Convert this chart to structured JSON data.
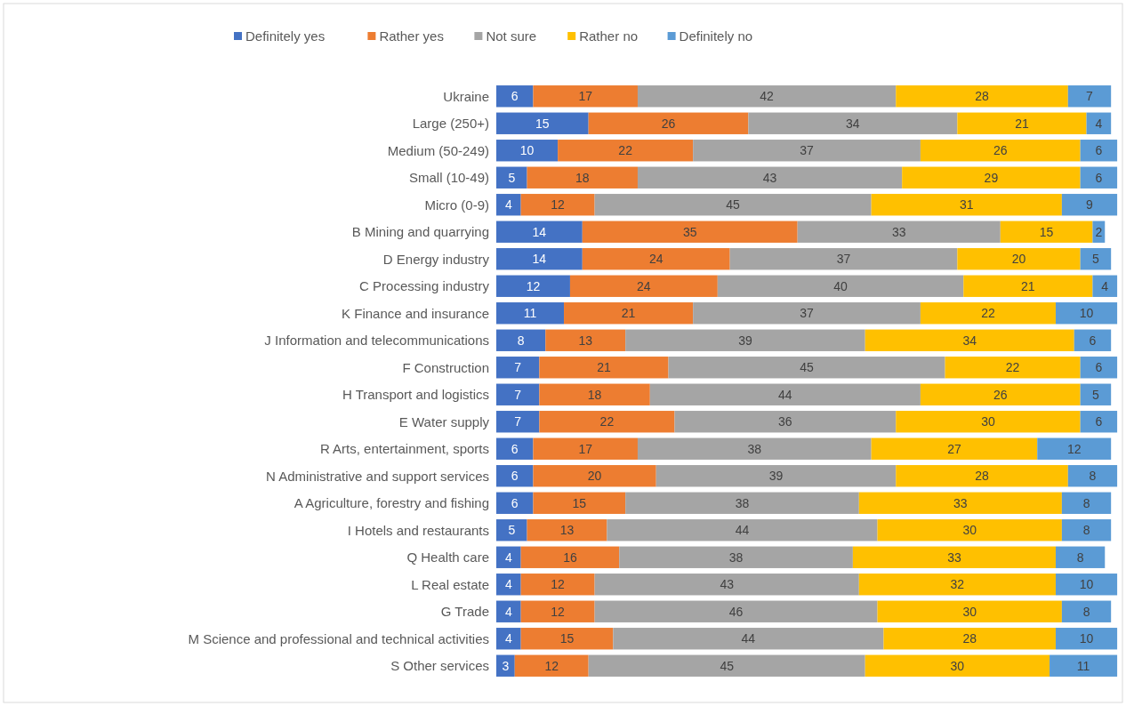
{
  "chart_data": {
    "type": "bar",
    "orientation": "horizontal",
    "stacked": true,
    "data_labels": true,
    "legend": "top",
    "tick_labels": "y",
    "xlim": [
      0,
      102
    ],
    "categories": [
      "Ukraine",
      "Large (250+)",
      "Medium (50-249)",
      "Small (10-49)",
      "Micro (0-9)",
      "B Mining and quarrying",
      "D Energy industry",
      "C Processing industry",
      "K Finance and insurance",
      "J Information and telecommunications",
      "F Construction",
      "H Transport and logistics",
      "E Water supply",
      "R Arts, entertainment, sports",
      "N Administrative and support services",
      "A Agriculture, forestry and fishing",
      "I Hotels and restaurants",
      "Q Health care",
      "L Real estate",
      "G Trade",
      "M Science and professional and technical activities",
      "S Other services"
    ],
    "series": [
      {
        "name": "Definitely yes",
        "color": "#4472c4",
        "values": [
          6,
          15,
          10,
          5,
          4,
          14,
          14,
          12,
          11,
          8,
          7,
          7,
          7,
          6,
          6,
          6,
          5,
          4,
          4,
          4,
          4,
          3
        ]
      },
      {
        "name": "Rather yes",
        "color": "#ed7d31",
        "values": [
          17,
          26,
          22,
          18,
          12,
          35,
          24,
          24,
          21,
          13,
          21,
          18,
          22,
          17,
          20,
          15,
          13,
          16,
          12,
          12,
          15,
          12
        ]
      },
      {
        "name": "Not sure",
        "color": "#a5a5a5",
        "values": [
          42,
          34,
          37,
          43,
          45,
          33,
          37,
          40,
          37,
          39,
          45,
          44,
          36,
          38,
          39,
          38,
          44,
          38,
          43,
          46,
          44,
          45
        ]
      },
      {
        "name": "Rather no",
        "color": "#ffc000",
        "values": [
          28,
          21,
          26,
          29,
          31,
          15,
          20,
          21,
          22,
          34,
          22,
          26,
          30,
          27,
          28,
          33,
          30,
          33,
          32,
          30,
          28,
          30
        ]
      },
      {
        "name": "Definitely no",
        "color": "#5b9bd5",
        "values": [
          7,
          4,
          6,
          6,
          9,
          2,
          5,
          4,
          10,
          6,
          6,
          5,
          6,
          12,
          8,
          8,
          8,
          8,
          10,
          8,
          10,
          11
        ]
      }
    ]
  }
}
